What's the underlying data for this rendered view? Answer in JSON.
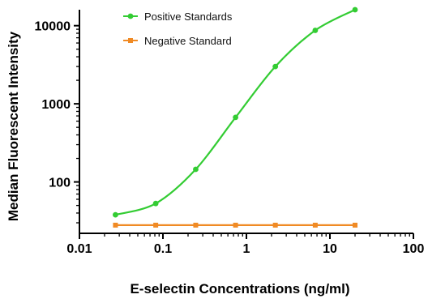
{
  "chart_data": {
    "type": "line",
    "xlabel": "E-selectin Concentrations (ng/ml)",
    "ylabel": "Median Fluorescent Intensity",
    "xscale": "log",
    "yscale": "log",
    "xlim": [
      0.01,
      100
    ],
    "ylim": [
      22,
      16000
    ],
    "xticks": [
      0.01,
      0.1,
      1,
      10,
      100
    ],
    "xtick_labels": [
      "0.01",
      "0.1",
      "1",
      "10",
      "100"
    ],
    "yticks": [
      100,
      1000,
      10000
    ],
    "ytick_labels": [
      "100",
      "1000",
      "10000"
    ],
    "grid": false,
    "legend_position": "top-center",
    "series": [
      {
        "name": "Positive Standards",
        "color": "#33cc33",
        "marker": "circle",
        "x": [
          0.027,
          0.082,
          0.247,
          0.741,
          2.22,
          6.67,
          20
        ],
        "y": [
          38,
          53,
          145,
          670,
          3000,
          8700,
          16000
        ]
      },
      {
        "name": "Negative Standard",
        "color": "#f08a24",
        "marker": "square",
        "x": [
          0.027,
          0.082,
          0.247,
          0.741,
          2.22,
          6.67,
          20
        ],
        "y": [
          28,
          28,
          28,
          28,
          28,
          28,
          28
        ]
      }
    ]
  }
}
